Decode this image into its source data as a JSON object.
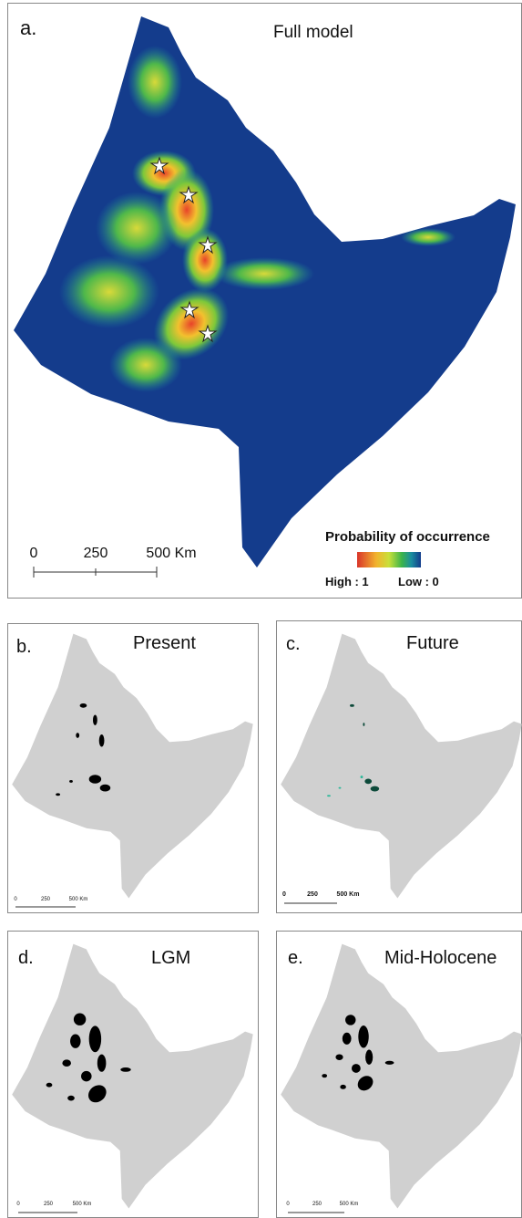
{
  "panels": [
    {
      "label": "a.",
      "title": "Full model",
      "scale_labels": [
        "0",
        "250",
        "500 Km"
      ],
      "legend": {
        "title": "Probability of occurrence",
        "high": "High : 1",
        "low": "Low : 0"
      }
    },
    {
      "label": "b.",
      "title": "Present",
      "scale_labels": [
        "0",
        "250",
        "500 Km"
      ]
    },
    {
      "label": "c.",
      "title": "Future",
      "scale_labels": [
        "0",
        "250",
        "500 Km"
      ]
    },
    {
      "label": "d.",
      "title": "LGM",
      "scale_labels": [
        "0",
        "250",
        "500 Km"
      ]
    },
    {
      "label": "e.",
      "title": "Mid-Holocene",
      "scale_labels": [
        "0",
        "250",
        "500 Km"
      ]
    }
  ]
}
